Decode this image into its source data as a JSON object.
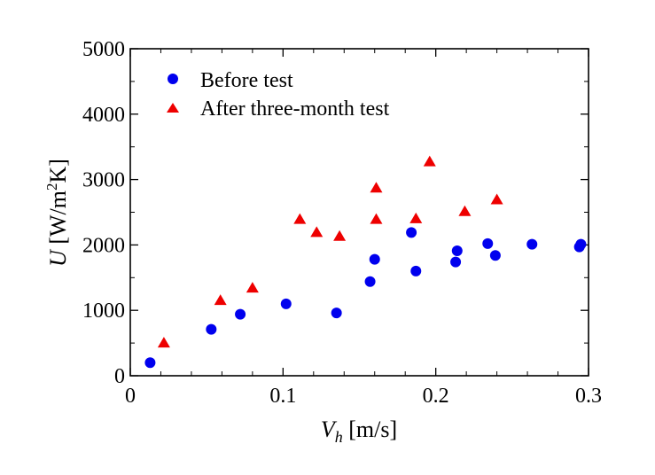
{
  "chart_data": {
    "type": "scatter",
    "xlim": [
      0,
      0.3
    ],
    "ylim": [
      0,
      5000
    ],
    "x_ticks": [
      0,
      0.1,
      0.2,
      0.3
    ],
    "x_tick_labels": [
      "0",
      "0.1",
      "0.2",
      "0.3"
    ],
    "y_ticks": [
      0,
      1000,
      2000,
      3000,
      4000,
      5000
    ],
    "y_tick_labels": [
      "0",
      "1000",
      "2000",
      "3000",
      "4000",
      "5000"
    ],
    "xlabel": {
      "var": "V",
      "sub": "h",
      "unit": " [m/s]"
    },
    "ylabel": {
      "var": "U",
      "pre": " [W/m",
      "sup": "2",
      "post": "K]"
    },
    "grid": false,
    "legend_position": "top-left",
    "series": [
      {
        "name": "Before test",
        "marker": "circle",
        "color": "#0000ee",
        "points": [
          [
            0.013,
            200
          ],
          [
            0.053,
            710
          ],
          [
            0.072,
            940
          ],
          [
            0.102,
            1100
          ],
          [
            0.135,
            960
          ],
          [
            0.157,
            1440
          ],
          [
            0.16,
            1780
          ],
          [
            0.184,
            2190
          ],
          [
            0.187,
            1600
          ],
          [
            0.213,
            1740
          ],
          [
            0.214,
            1910
          ],
          [
            0.234,
            2020
          ],
          [
            0.239,
            1840
          ],
          [
            0.263,
            2010
          ],
          [
            0.294,
            1970
          ],
          [
            0.295,
            2010
          ]
        ]
      },
      {
        "name": "After three-month test",
        "marker": "triangle",
        "color": "#ee0000",
        "points": [
          [
            0.022,
            500
          ],
          [
            0.059,
            1150
          ],
          [
            0.08,
            1340
          ],
          [
            0.111,
            2390
          ],
          [
            0.122,
            2190
          ],
          [
            0.137,
            2130
          ],
          [
            0.161,
            2870
          ],
          [
            0.161,
            2390
          ],
          [
            0.187,
            2400
          ],
          [
            0.196,
            3270
          ],
          [
            0.219,
            2510
          ],
          [
            0.24,
            2690
          ]
        ]
      }
    ]
  }
}
